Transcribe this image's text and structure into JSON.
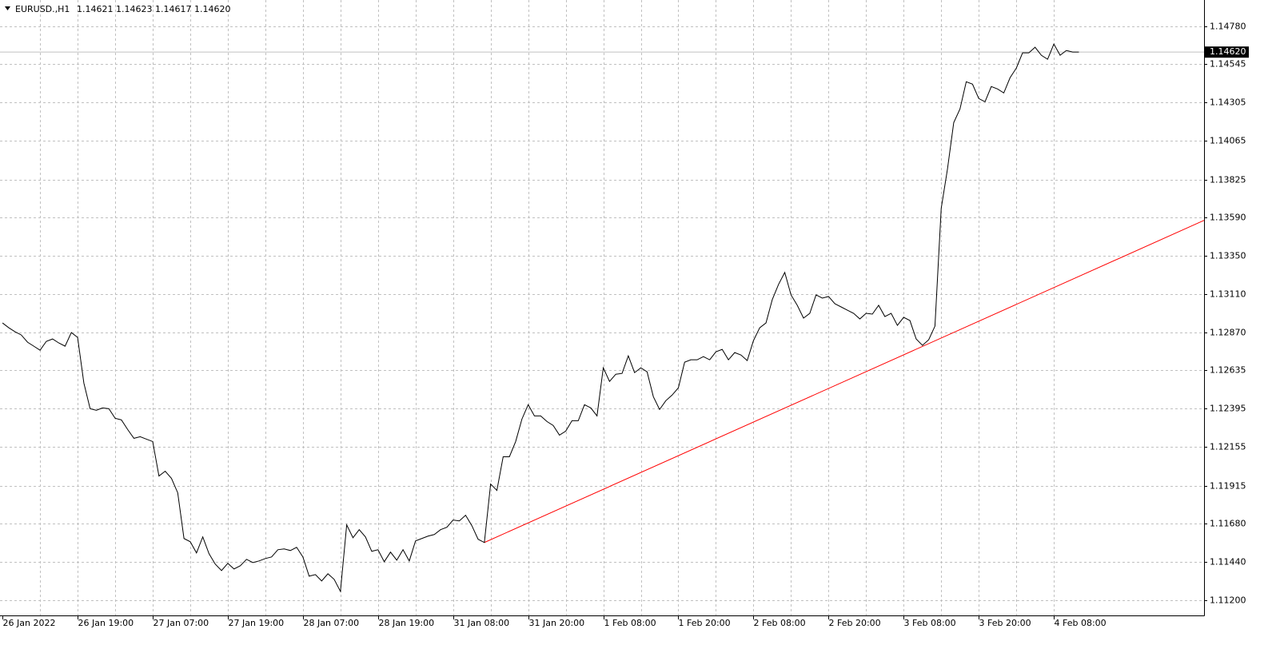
{
  "chart_data": {
    "type": "line",
    "header": {
      "symbol": "EURUSD.,H1",
      "ohlc": [
        "1.14621",
        "1.14623",
        "1.14617",
        "1.14620"
      ]
    },
    "color": "#000000",
    "grid": true,
    "categories": [
      "26 Jan 2022",
      null,
      null,
      null,
      null,
      null,
      null,
      null,
      null,
      null,
      null,
      null,
      "26 Jan 19:00",
      null,
      null,
      null,
      null,
      null,
      null,
      null,
      null,
      null,
      null,
      null,
      "27 Jan 07:00",
      null,
      null,
      null,
      null,
      null,
      null,
      null,
      null,
      null,
      null,
      null,
      "27 Jan 19:00",
      null,
      null,
      null,
      null,
      null,
      null,
      null,
      null,
      null,
      null,
      null,
      "28 Jan 07:00",
      null,
      null,
      null,
      null,
      null,
      null,
      null,
      null,
      null,
      null,
      null,
      "28 Jan 19:00",
      null,
      null,
      null,
      null,
      null,
      null,
      null,
      null,
      null,
      null,
      null,
      "31 Jan 08:00",
      null,
      null,
      null,
      null,
      null,
      null,
      null,
      null,
      null,
      null,
      null,
      "31 Jan 20:00",
      null,
      null,
      null,
      null,
      null,
      null,
      null,
      null,
      null,
      null,
      null,
      "1 Feb 08:00",
      null,
      null,
      null,
      null,
      null,
      null,
      null,
      null,
      null,
      null,
      null,
      "1 Feb 20:00",
      null,
      null,
      null,
      null,
      null,
      null,
      null,
      null,
      null,
      null,
      null,
      "2 Feb 08:00",
      null,
      null,
      null,
      null,
      null,
      null,
      null,
      null,
      null,
      null,
      null,
      "2 Feb 20:00",
      null,
      null,
      null,
      null,
      null,
      null,
      null,
      null,
      null,
      null,
      null,
      "3 Feb 08:00",
      null,
      null,
      null,
      null,
      null,
      null,
      null,
      null,
      null,
      null,
      null,
      "3 Feb 20:00",
      null,
      null,
      null,
      null,
      null,
      null,
      null,
      null,
      null,
      null,
      null,
      "4 Feb 08:00",
      null,
      null,
      null,
      null
    ],
    "values": [
      1.1293,
      1.129,
      1.12875,
      1.12855,
      1.1281,
      1.12785,
      1.1276,
      1.12815,
      1.1283,
      1.12805,
      1.12785,
      1.1287,
      1.1284,
      1.12555,
      1.12395,
      1.12385,
      1.124,
      1.12395,
      1.12335,
      1.12325,
      1.12265,
      1.1221,
      1.1222,
      1.12205,
      1.1219,
      1.11975,
      1.12005,
      1.1196,
      1.1187,
      1.11585,
      1.11565,
      1.11495,
      1.11595,
      1.1149,
      1.11425,
      1.11385,
      1.1143,
      1.11395,
      1.11415,
      1.11455,
      1.11435,
      1.11445,
      1.1146,
      1.1147,
      1.11515,
      1.1152,
      1.1151,
      1.1153,
      1.1147,
      1.1135,
      1.1136,
      1.1132,
      1.11365,
      1.1133,
      1.11255,
      1.1167,
      1.1159,
      1.1164,
      1.11595,
      1.11505,
      1.11515,
      1.1144,
      1.115,
      1.1145,
      1.11515,
      1.11445,
      1.1157,
      1.11585,
      1.116,
      1.1161,
      1.1164,
      1.11655,
      1.117,
      1.11695,
      1.1173,
      1.11665,
      1.1158,
      1.1156,
      1.11925,
      1.11885,
      1.12095,
      1.12095,
      1.1219,
      1.1233,
      1.1242,
      1.1235,
      1.1235,
      1.12315,
      1.1229,
      1.1223,
      1.12255,
      1.1232,
      1.1232,
      1.1242,
      1.124,
      1.1235,
      1.1265,
      1.12565,
      1.1261,
      1.12615,
      1.12725,
      1.1262,
      1.1265,
      1.12625,
      1.1247,
      1.1239,
      1.12445,
      1.1248,
      1.12525,
      1.12685,
      1.127,
      1.127,
      1.1272,
      1.127,
      1.1275,
      1.12765,
      1.127,
      1.12745,
      1.1273,
      1.12695,
      1.1282,
      1.129,
      1.1293,
      1.13075,
      1.1317,
      1.13245,
      1.13105,
      1.1304,
      1.1296,
      1.1299,
      1.13105,
      1.13085,
      1.13095,
      1.1305,
      1.1303,
      1.1301,
      1.1299,
      1.12955,
      1.1299,
      1.12985,
      1.1304,
      1.1297,
      1.1299,
      1.12915,
      1.12965,
      1.12945,
      1.1283,
      1.1279,
      1.12825,
      1.1291,
      1.13645,
      1.1389,
      1.1418,
      1.14265,
      1.14435,
      1.1442,
      1.1433,
      1.1431,
      1.14405,
      1.1439,
      1.14365,
      1.1446,
      1.1452,
      1.14615,
      1.14615,
      1.1465,
      1.146,
      1.14575,
      1.1467,
      1.146,
      1.1463,
      1.1462,
      1.1462
    ],
    "xlim": [
      -0.4,
      192
    ],
    "ylim": [
      1.11105,
      1.14945
    ],
    "yticks": [
      {
        "value": 1.1478,
        "label": "1.14780"
      },
      {
        "value": 1.14545,
        "label": "1.14545"
      },
      {
        "value": 1.14305,
        "label": "1.14305"
      },
      {
        "value": 1.14065,
        "label": "1.14065"
      },
      {
        "value": 1.13825,
        "label": "1.13825"
      },
      {
        "value": 1.1359,
        "label": "1.13590"
      },
      {
        "value": 1.1335,
        "label": "1.13350"
      },
      {
        "value": 1.1311,
        "label": "1.13110"
      },
      {
        "value": 1.1287,
        "label": "1.12870"
      },
      {
        "value": 1.12635,
        "label": "1.12635"
      },
      {
        "value": 1.12395,
        "label": "1.12395"
      },
      {
        "value": 1.12155,
        "label": "1.12155"
      },
      {
        "value": 1.11915,
        "label": "1.11915"
      },
      {
        "value": 1.1168,
        "label": "1.11680"
      },
      {
        "value": 1.1144,
        "label": "1.11440"
      },
      {
        "value": 1.112,
        "label": "1.11200"
      }
    ],
    "current_price": {
      "value": 1.1462,
      "label": "1.14620"
    },
    "trendline": {
      "color": "#ff0000",
      "x": [
        77,
        192
      ],
      "values": [
        1.1156,
        1.1357
      ]
    }
  }
}
